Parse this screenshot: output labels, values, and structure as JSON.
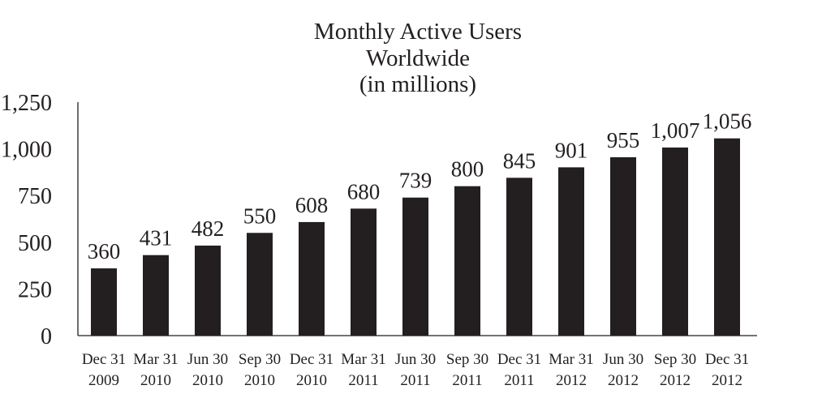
{
  "chart_data": {
    "type": "bar",
    "title_lines": [
      "Monthly Active Users",
      "Worldwide",
      "(in millions)"
    ],
    "xlabel": "",
    "ylabel": "",
    "ylim": [
      0,
      1250
    ],
    "y_ticks": [
      "0",
      "250",
      "500",
      "750",
      "1,000",
      "1,250"
    ],
    "y_tick_values": [
      0,
      250,
      500,
      750,
      1000,
      1250
    ],
    "categories": [
      [
        "Dec 31",
        "2009"
      ],
      [
        "Mar 31",
        "2010"
      ],
      [
        "Jun 30",
        "2010"
      ],
      [
        "Sep 30",
        "2010"
      ],
      [
        "Dec 31",
        "2010"
      ],
      [
        "Mar 31",
        "2011"
      ],
      [
        "Jun 30",
        "2011"
      ],
      [
        "Sep 30",
        "2011"
      ],
      [
        "Dec 31",
        "2011"
      ],
      [
        "Mar 31",
        "2012"
      ],
      [
        "Jun 30",
        "2012"
      ],
      [
        "Sep 30",
        "2012"
      ],
      [
        "Dec 31",
        "2012"
      ]
    ],
    "values": [
      360,
      431,
      482,
      550,
      608,
      680,
      739,
      800,
      845,
      901,
      955,
      1007,
      1056
    ],
    "value_labels": [
      "360",
      "431",
      "482",
      "550",
      "608",
      "680",
      "739",
      "800",
      "845",
      "901",
      "955",
      "1,007",
      "1,056"
    ],
    "grid": false,
    "legend": "none",
    "bar_color": "#231f20",
    "text_color": "#231f20"
  }
}
